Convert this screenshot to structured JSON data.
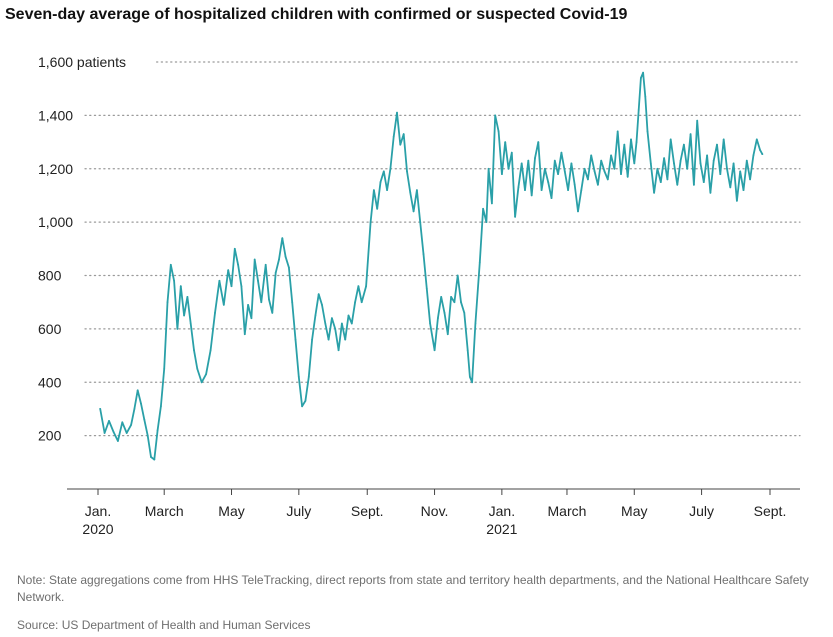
{
  "chart_data": {
    "type": "line",
    "title": "Seven-day average of hospitalized children with confirmed or suspected Covid-19",
    "xlabel": "",
    "ylabel": "",
    "ylim": [
      0,
      1600
    ],
    "y_ticks": [
      {
        "value": 200,
        "label": "200"
      },
      {
        "value": 400,
        "label": "400"
      },
      {
        "value": 600,
        "label": "600"
      },
      {
        "value": 800,
        "label": "800"
      },
      {
        "value": 1000,
        "label": "1,000"
      },
      {
        "value": 1200,
        "label": "1,200"
      },
      {
        "value": 1400,
        "label": "1,400"
      },
      {
        "value": 1600,
        "label": "1,600 patients"
      }
    ],
    "x_range": [
      "2020-01-01",
      "2021-09-01"
    ],
    "x_ticks": [
      {
        "date": "2020-01-01",
        "label": "Jan.",
        "sublabel": "2020"
      },
      {
        "date": "2020-03-01",
        "label": "March",
        "sublabel": ""
      },
      {
        "date": "2020-05-01",
        "label": "May",
        "sublabel": ""
      },
      {
        "date": "2020-07-01",
        "label": "July",
        "sublabel": ""
      },
      {
        "date": "2020-09-01",
        "label": "Sept.",
        "sublabel": ""
      },
      {
        "date": "2020-11-01",
        "label": "Nov.",
        "sublabel": ""
      },
      {
        "date": "2021-01-01",
        "label": "Jan.",
        "sublabel": "2021"
      },
      {
        "date": "2021-03-01",
        "label": "March",
        "sublabel": ""
      },
      {
        "date": "2021-05-01",
        "label": "May",
        "sublabel": ""
      },
      {
        "date": "2021-07-01",
        "label": "July",
        "sublabel": ""
      },
      {
        "date": "2021-09-01",
        "label": "Sept.",
        "sublabel": ""
      }
    ],
    "grid": "horizontal dotted",
    "line_color": "#2aa0a8",
    "series": [
      {
        "points": [
          {
            "x": "2020-01-03",
            "y": 300
          },
          {
            "x": "2020-01-07",
            "y": 210
          },
          {
            "x": "2020-01-11",
            "y": 255
          },
          {
            "x": "2020-01-15",
            "y": 215
          },
          {
            "x": "2020-01-19",
            "y": 180
          },
          {
            "x": "2020-01-23",
            "y": 250
          },
          {
            "x": "2020-01-27",
            "y": 210
          },
          {
            "x": "2020-01-31",
            "y": 240
          },
          {
            "x": "2020-02-03",
            "y": 300
          },
          {
            "x": "2020-02-06",
            "y": 370
          },
          {
            "x": "2020-02-09",
            "y": 320
          },
          {
            "x": "2020-02-12",
            "y": 260
          },
          {
            "x": "2020-02-15",
            "y": 200
          },
          {
            "x": "2020-02-18",
            "y": 120
          },
          {
            "x": "2020-02-21",
            "y": 110
          },
          {
            "x": "2020-02-24",
            "y": 220
          },
          {
            "x": "2020-02-27",
            "y": 310
          },
          {
            "x": "2020-03-01",
            "y": 450
          },
          {
            "x": "2020-03-04",
            "y": 700
          },
          {
            "x": "2020-03-07",
            "y": 840
          },
          {
            "x": "2020-03-10",
            "y": 780
          },
          {
            "x": "2020-03-13",
            "y": 600
          },
          {
            "x": "2020-03-16",
            "y": 760
          },
          {
            "x": "2020-03-19",
            "y": 650
          },
          {
            "x": "2020-03-22",
            "y": 720
          },
          {
            "x": "2020-03-25",
            "y": 620
          },
          {
            "x": "2020-03-28",
            "y": 520
          },
          {
            "x": "2020-03-31",
            "y": 450
          },
          {
            "x": "2020-04-04",
            "y": 400
          },
          {
            "x": "2020-04-08",
            "y": 430
          },
          {
            "x": "2020-04-12",
            "y": 520
          },
          {
            "x": "2020-04-16",
            "y": 660
          },
          {
            "x": "2020-04-20",
            "y": 780
          },
          {
            "x": "2020-04-24",
            "y": 690
          },
          {
            "x": "2020-04-28",
            "y": 820
          },
          {
            "x": "2020-05-01",
            "y": 760
          },
          {
            "x": "2020-05-04",
            "y": 900
          },
          {
            "x": "2020-05-07",
            "y": 840
          },
          {
            "x": "2020-05-10",
            "y": 760
          },
          {
            "x": "2020-05-13",
            "y": 580
          },
          {
            "x": "2020-05-16",
            "y": 690
          },
          {
            "x": "2020-05-19",
            "y": 640
          },
          {
            "x": "2020-05-22",
            "y": 860
          },
          {
            "x": "2020-05-25",
            "y": 780
          },
          {
            "x": "2020-05-28",
            "y": 700
          },
          {
            "x": "2020-06-01",
            "y": 840
          },
          {
            "x": "2020-06-04",
            "y": 710
          },
          {
            "x": "2020-06-07",
            "y": 660
          },
          {
            "x": "2020-06-10",
            "y": 810
          },
          {
            "x": "2020-06-13",
            "y": 860
          },
          {
            "x": "2020-06-16",
            "y": 940
          },
          {
            "x": "2020-06-19",
            "y": 870
          },
          {
            "x": "2020-06-22",
            "y": 830
          },
          {
            "x": "2020-06-25",
            "y": 700
          },
          {
            "x": "2020-06-28",
            "y": 560
          },
          {
            "x": "2020-07-01",
            "y": 420
          },
          {
            "x": "2020-07-04",
            "y": 310
          },
          {
            "x": "2020-07-07",
            "y": 330
          },
          {
            "x": "2020-07-10",
            "y": 420
          },
          {
            "x": "2020-07-13",
            "y": 560
          },
          {
            "x": "2020-07-16",
            "y": 650
          },
          {
            "x": "2020-07-19",
            "y": 730
          },
          {
            "x": "2020-07-22",
            "y": 690
          },
          {
            "x": "2020-07-25",
            "y": 620
          },
          {
            "x": "2020-07-28",
            "y": 560
          },
          {
            "x": "2020-07-31",
            "y": 640
          },
          {
            "x": "2020-08-03",
            "y": 600
          },
          {
            "x": "2020-08-06",
            "y": 520
          },
          {
            "x": "2020-08-09",
            "y": 620
          },
          {
            "x": "2020-08-12",
            "y": 560
          },
          {
            "x": "2020-08-15",
            "y": 650
          },
          {
            "x": "2020-08-18",
            "y": 620
          },
          {
            "x": "2020-08-21",
            "y": 700
          },
          {
            "x": "2020-08-24",
            "y": 760
          },
          {
            "x": "2020-08-27",
            "y": 700
          },
          {
            "x": "2020-08-31",
            "y": 760
          },
          {
            "x": "2020-09-04",
            "y": 1000
          },
          {
            "x": "2020-09-07",
            "y": 1120
          },
          {
            "x": "2020-09-10",
            "y": 1050
          },
          {
            "x": "2020-09-13",
            "y": 1150
          },
          {
            "x": "2020-09-16",
            "y": 1190
          },
          {
            "x": "2020-09-19",
            "y": 1120
          },
          {
            "x": "2020-09-22",
            "y": 1200
          },
          {
            "x": "2020-09-25",
            "y": 1320
          },
          {
            "x": "2020-09-28",
            "y": 1410
          },
          {
            "x": "2020-10-01",
            "y": 1290
          },
          {
            "x": "2020-10-04",
            "y": 1330
          },
          {
            "x": "2020-10-07",
            "y": 1190
          },
          {
            "x": "2020-10-10",
            "y": 1110
          },
          {
            "x": "2020-10-13",
            "y": 1040
          },
          {
            "x": "2020-10-16",
            "y": 1120
          },
          {
            "x": "2020-10-19",
            "y": 1000
          },
          {
            "x": "2020-10-22",
            "y": 880
          },
          {
            "x": "2020-10-25",
            "y": 750
          },
          {
            "x": "2020-10-28",
            "y": 620
          },
          {
            "x": "2020-11-01",
            "y": 520
          },
          {
            "x": "2020-11-04",
            "y": 640
          },
          {
            "x": "2020-11-07",
            "y": 720
          },
          {
            "x": "2020-11-10",
            "y": 660
          },
          {
            "x": "2020-11-13",
            "y": 580
          },
          {
            "x": "2020-11-16",
            "y": 720
          },
          {
            "x": "2020-11-19",
            "y": 700
          },
          {
            "x": "2020-11-22",
            "y": 800
          },
          {
            "x": "2020-11-25",
            "y": 700
          },
          {
            "x": "2020-11-28",
            "y": 660
          },
          {
            "x": "2020-12-01",
            "y": 520
          },
          {
            "x": "2020-12-03",
            "y": 420
          },
          {
            "x": "2020-12-05",
            "y": 400
          },
          {
            "x": "2020-12-08",
            "y": 620
          },
          {
            "x": "2020-12-12",
            "y": 850
          },
          {
            "x": "2020-12-15",
            "y": 1050
          },
          {
            "x": "2020-12-18",
            "y": 1000
          },
          {
            "x": "2020-12-20",
            "y": 1200
          },
          {
            "x": "2020-12-23",
            "y": 1070
          },
          {
            "x": "2020-12-26",
            "y": 1400
          },
          {
            "x": "2020-12-29",
            "y": 1340
          },
          {
            "x": "2021-01-01",
            "y": 1180
          },
          {
            "x": "2021-01-04",
            "y": 1300
          },
          {
            "x": "2021-01-07",
            "y": 1200
          },
          {
            "x": "2021-01-10",
            "y": 1260
          },
          {
            "x": "2021-01-13",
            "y": 1020
          },
          {
            "x": "2021-01-16",
            "y": 1130
          },
          {
            "x": "2021-01-19",
            "y": 1220
          },
          {
            "x": "2021-01-22",
            "y": 1120
          },
          {
            "x": "2021-01-25",
            "y": 1230
          },
          {
            "x": "2021-01-28",
            "y": 1100
          },
          {
            "x": "2021-01-31",
            "y": 1240
          },
          {
            "x": "2021-02-03",
            "y": 1300
          },
          {
            "x": "2021-02-06",
            "y": 1120
          },
          {
            "x": "2021-02-09",
            "y": 1200
          },
          {
            "x": "2021-02-12",
            "y": 1150
          },
          {
            "x": "2021-02-15",
            "y": 1090
          },
          {
            "x": "2021-02-18",
            "y": 1230
          },
          {
            "x": "2021-02-21",
            "y": 1180
          },
          {
            "x": "2021-02-24",
            "y": 1260
          },
          {
            "x": "2021-02-27",
            "y": 1190
          },
          {
            "x": "2021-03-02",
            "y": 1120
          },
          {
            "x": "2021-03-05",
            "y": 1220
          },
          {
            "x": "2021-03-08",
            "y": 1140
          },
          {
            "x": "2021-03-11",
            "y": 1040
          },
          {
            "x": "2021-03-14",
            "y": 1120
          },
          {
            "x": "2021-03-17",
            "y": 1200
          },
          {
            "x": "2021-03-20",
            "y": 1160
          },
          {
            "x": "2021-03-23",
            "y": 1250
          },
          {
            "x": "2021-03-26",
            "y": 1190
          },
          {
            "x": "2021-03-29",
            "y": 1140
          },
          {
            "x": "2021-04-01",
            "y": 1230
          },
          {
            "x": "2021-04-04",
            "y": 1190
          },
          {
            "x": "2021-04-07",
            "y": 1160
          },
          {
            "x": "2021-04-10",
            "y": 1250
          },
          {
            "x": "2021-04-13",
            "y": 1200
          },
          {
            "x": "2021-04-16",
            "y": 1340
          },
          {
            "x": "2021-04-19",
            "y": 1180
          },
          {
            "x": "2021-04-22",
            "y": 1290
          },
          {
            "x": "2021-04-25",
            "y": 1170
          },
          {
            "x": "2021-04-28",
            "y": 1310
          },
          {
            "x": "2021-05-01",
            "y": 1220
          },
          {
            "x": "2021-05-03",
            "y": 1300
          },
          {
            "x": "2021-05-05",
            "y": 1420
          },
          {
            "x": "2021-05-07",
            "y": 1540
          },
          {
            "x": "2021-05-09",
            "y": 1560
          },
          {
            "x": "2021-05-11",
            "y": 1470
          },
          {
            "x": "2021-05-13",
            "y": 1340
          },
          {
            "x": "2021-05-16",
            "y": 1220
          },
          {
            "x": "2021-05-19",
            "y": 1110
          },
          {
            "x": "2021-05-22",
            "y": 1200
          },
          {
            "x": "2021-05-25",
            "y": 1150
          },
          {
            "x": "2021-05-28",
            "y": 1240
          },
          {
            "x": "2021-05-31",
            "y": 1160
          },
          {
            "x": "2021-06-03",
            "y": 1310
          },
          {
            "x": "2021-06-06",
            "y": 1220
          },
          {
            "x": "2021-06-09",
            "y": 1140
          },
          {
            "x": "2021-06-12",
            "y": 1230
          },
          {
            "x": "2021-06-15",
            "y": 1290
          },
          {
            "x": "2021-06-18",
            "y": 1200
          },
          {
            "x": "2021-06-21",
            "y": 1330
          },
          {
            "x": "2021-06-24",
            "y": 1140
          },
          {
            "x": "2021-06-27",
            "y": 1380
          },
          {
            "x": "2021-06-30",
            "y": 1220
          },
          {
            "x": "2021-07-03",
            "y": 1150
          },
          {
            "x": "2021-07-06",
            "y": 1250
          },
          {
            "x": "2021-07-09",
            "y": 1110
          },
          {
            "x": "2021-07-12",
            "y": 1230
          },
          {
            "x": "2021-07-15",
            "y": 1290
          },
          {
            "x": "2021-07-18",
            "y": 1180
          },
          {
            "x": "2021-07-21",
            "y": 1310
          },
          {
            "x": "2021-07-24",
            "y": 1200
          },
          {
            "x": "2021-07-27",
            "y": 1130
          },
          {
            "x": "2021-07-30",
            "y": 1220
          },
          {
            "x": "2021-08-02",
            "y": 1080
          },
          {
            "x": "2021-08-05",
            "y": 1190
          },
          {
            "x": "2021-08-08",
            "y": 1120
          },
          {
            "x": "2021-08-11",
            "y": 1230
          },
          {
            "x": "2021-08-14",
            "y": 1160
          },
          {
            "x": "2021-08-17",
            "y": 1250
          },
          {
            "x": "2021-08-20",
            "y": 1310
          },
          {
            "x": "2021-08-23",
            "y": 1270
          },
          {
            "x": "2021-08-25",
            "y": 1255
          }
        ]
      }
    ]
  },
  "footer": {
    "note": "Note: State aggregations come from HHS TeleTracking, direct reports from state and territory health departments, and the National Healthcare Safety Network.",
    "source": "Source: US Department of Health and Human Services"
  }
}
